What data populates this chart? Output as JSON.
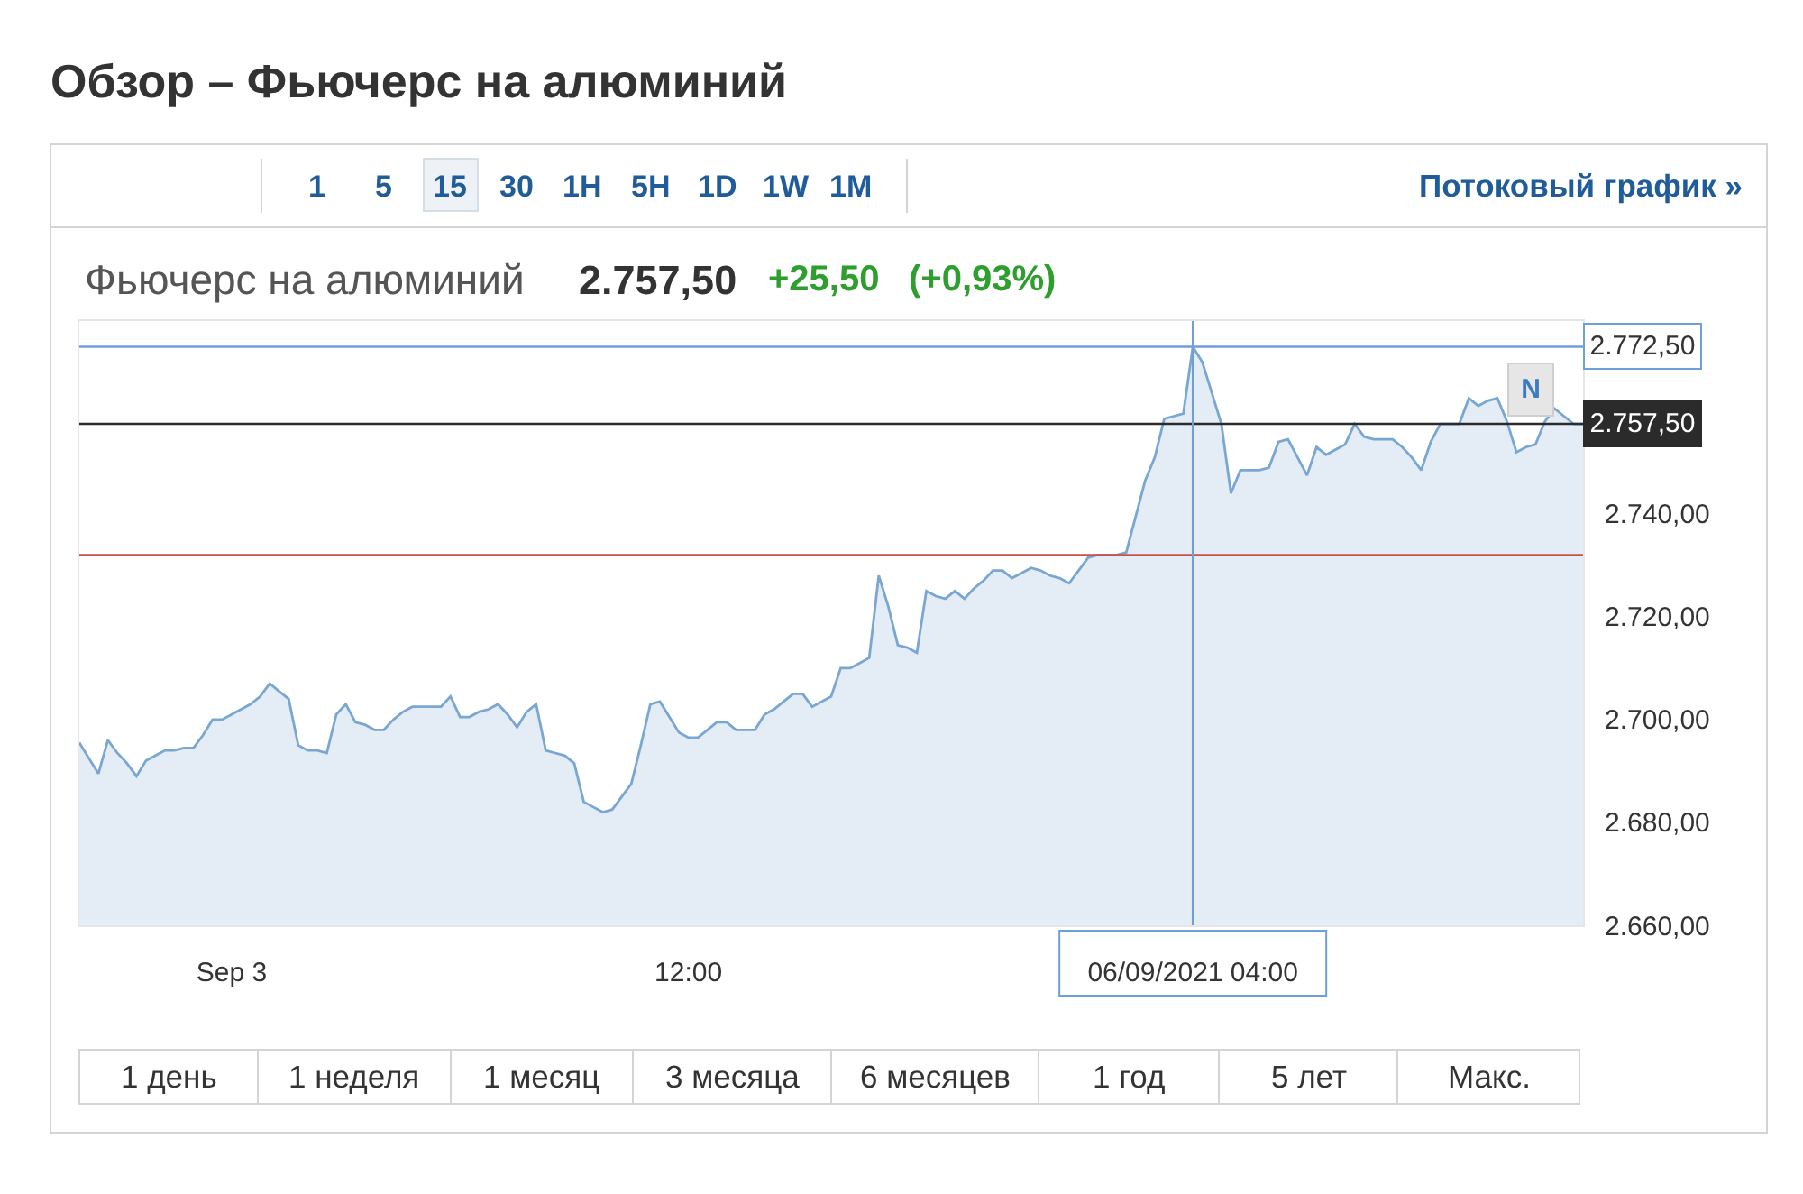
{
  "chart_data": {
    "type": "area",
    "title": "Обзор – Фьючерс на алюминий",
    "subtitle": "Фьючерс на алюминий",
    "annotations": [
      "1",
      "5",
      "15",
      "30",
      "1H",
      "5H",
      "1D",
      "1W",
      "1M",
      "Потоковый график »",
      "2.757,50",
      "+25,50",
      "(+0,93%)",
      "1 день",
      "1 неделя",
      "1 месяц",
      "3 месяца",
      "6 месяцев",
      "1 год",
      "5 лет",
      "Макс.",
      "N"
    ],
    "categories": [
      null,
      null,
      null,
      null,
      null,
      null,
      null,
      null,
      null,
      null,
      null,
      null,
      null,
      null,
      null,
      null,
      "Sep 3",
      null,
      null,
      null,
      null,
      null,
      null,
      null,
      null,
      null,
      null,
      null,
      null,
      null,
      null,
      null,
      null,
      null,
      null,
      null,
      null,
      null,
      null,
      null,
      null,
      null,
      null,
      null,
      null,
      null,
      null,
      null,
      null,
      null,
      null,
      null,
      null,
      null,
      null,
      null,
      null,
      null,
      null,
      null,
      null,
      null,
      null,
      null,
      "12:00",
      null,
      null,
      null,
      null,
      null,
      null,
      null,
      null,
      null,
      null,
      null,
      null,
      null,
      null,
      null,
      null,
      null,
      null,
      null,
      null,
      null,
      null,
      null,
      null,
      null,
      null,
      null,
      null,
      null,
      null,
      null,
      null,
      null,
      null,
      null,
      null,
      null,
      null,
      null,
      null,
      null,
      null,
      null,
      null,
      null,
      null,
      null,
      null,
      null,
      null,
      null,
      null,
      "06/09/2021 04:00",
      null,
      null,
      null,
      null,
      null,
      null,
      null,
      null,
      null,
      null,
      null,
      null,
      null,
      null,
      null,
      null,
      null,
      null,
      null,
      null,
      null,
      null,
      null,
      null,
      null,
      null,
      null,
      null,
      null,
      null,
      null,
      null,
      null,
      null,
      null,
      null,
      null,
      null,
      null,
      null,
      null
    ],
    "series": [
      {
        "color": "#7aa6d2",
        "values": [
          2695.5,
          2692.5,
          2689.5,
          2696,
          2693.5,
          2691.5,
          2689,
          2692,
          2693,
          2694,
          2694,
          2694.5,
          2694.5,
          2697,
          2700,
          2700,
          2701,
          2702,
          2703,
          2704.5,
          2707,
          2705.5,
          2704,
          2695,
          2694,
          2694,
          2693.5,
          2701,
          2703,
          2699.5,
          2699,
          2698,
          2698,
          2700,
          2701.5,
          2702.5,
          2702.5,
          2702.5,
          2702.5,
          2704.5,
          2700.5,
          2700.5,
          2701.5,
          2702,
          2703,
          2701,
          2698.5,
          2701.5,
          2703,
          2694,
          2693.5,
          2693,
          2691.5,
          2684,
          2683,
          2682,
          2682.5,
          2685,
          2687.5,
          2695,
          2703,
          2703.5,
          2700.5,
          2697.5,
          2696.5,
          2696.5,
          2698,
          2699.5,
          2699.5,
          2698,
          2698,
          2698,
          2701,
          2702,
          2703.5,
          2705,
          2705,
          2702.5,
          2703.5,
          2704.5,
          2710,
          2710,
          2711,
          2712,
          2728,
          2722,
          2714.5,
          2714,
          2713,
          2725,
          2724,
          2723.5,
          2725,
          2723.5,
          2725.5,
          2727,
          2729,
          2729,
          2727.5,
          2728.5,
          2729.5,
          2729,
          2728,
          2727.5,
          2726.5,
          2729,
          2731.5,
          2732,
          2732,
          2732,
          2732.5,
          2739.5,
          2746.5,
          2751,
          2758.5,
          2759,
          2759.5,
          2772.5,
          2769.5,
          2763.5,
          2757.5,
          2744,
          2748.5,
          2748.5,
          2748.5,
          2749,
          2754,
          2754.5,
          2751,
          2747.5,
          2753,
          2751.5,
          2752.5,
          2753.5,
          2757.5,
          2755,
          2754.5,
          2754.5,
          2754.5,
          2753,
          2751,
          2748.5,
          2754,
          2757.5,
          2757.5,
          2757.5,
          2762.5,
          2761,
          2762,
          2762.5,
          2758,
          2752,
          2753,
          2753.5,
          2758,
          2760.5,
          2759,
          2757.5,
          2757.5
        ]
      }
    ],
    "ylim": [
      2660,
      2777.5
    ],
    "yticks": [
      {
        "value": 2660,
        "label": "2.660,00"
      },
      {
        "value": 2680,
        "label": "2.680,00"
      },
      {
        "value": 2700,
        "label": "2.700,00"
      },
      {
        "value": 2720,
        "label": "2.720,00"
      },
      {
        "value": 2740,
        "label": "2.740,00"
      }
    ],
    "ref_lines": [
      {
        "axis": "y",
        "value": 2772.5,
        "label": "2.772,50",
        "color": "#6f9fd8"
      },
      {
        "axis": "y",
        "value": 2757.5,
        "label": "2.757,50",
        "color": "#2b2b2b"
      },
      {
        "axis": "y",
        "value": 2732,
        "color": "#c9504b"
      },
      {
        "axis": "x",
        "value": "06/09/2021 04:00",
        "color": "#6f9fd8"
      }
    ]
  }
}
